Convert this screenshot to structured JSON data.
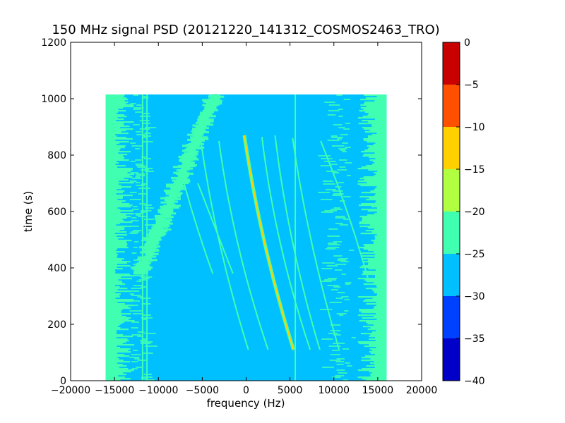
{
  "chart_data": {
    "type": "heatmap",
    "title": "150 MHz signal PSD (20121220_141312_COSMOS2463_TRO)",
    "xlabel": "frequency (Hz)",
    "ylabel": "time (s)",
    "xlim": [
      -20000,
      20000
    ],
    "ylim": [
      0,
      1200
    ],
    "xticks": [
      -20000,
      -15000,
      -10000,
      -5000,
      0,
      5000,
      10000,
      15000,
      20000
    ],
    "yticks": [
      0,
      200,
      400,
      600,
      800,
      1000
    ],
    "data_extent": {
      "freq": [
        -16000,
        16000
      ],
      "time": [
        0,
        1015
      ]
    },
    "background_levels": {
      "center": -27.5,
      "edges": -22.5
    },
    "colorbar": {
      "range": [
        -40,
        0
      ],
      "ticks": [
        0,
        -5,
        -10,
        -15,
        -20,
        -25,
        -30,
        -35,
        -40
      ],
      "bands": [
        {
          "from": -40,
          "to": -35,
          "color": "#0000c8"
        },
        {
          "from": -35,
          "to": -30,
          "color": "#0040ff"
        },
        {
          "from": -30,
          "to": -25,
          "color": "#00c0ff"
        },
        {
          "from": -25,
          "to": -20,
          "color": "#40ffb0"
        },
        {
          "from": -20,
          "to": -15,
          "color": "#b0ff40"
        },
        {
          "from": -15,
          "to": -10,
          "color": "#ffd000"
        },
        {
          "from": -10,
          "to": -5,
          "color": "#ff5000"
        },
        {
          "from": -5,
          "to": 0,
          "color": "#c80000"
        }
      ]
    },
    "tracks": [
      {
        "time_start": 110,
        "time_end": 870,
        "freq_at_start": 5400,
        "freq_at_mid": 2100,
        "freq_at_end": -200,
        "level": -12
      },
      {
        "time_start": 110,
        "time_end": 860,
        "freq_at_start": 250,
        "freq_at_mid": -3000,
        "freq_at_end": -5200,
        "level": -22
      },
      {
        "time_start": 110,
        "time_end": 850,
        "freq_at_start": 2500,
        "freq_at_mid": -900,
        "freq_at_end": -3100,
        "level": -22
      },
      {
        "time_start": 110,
        "time_end": 865,
        "freq_at_start": 7300,
        "freq_at_mid": 3900,
        "freq_at_end": 1800,
        "level": -22
      },
      {
        "time_start": 110,
        "time_end": 870,
        "freq_at_start": 8400,
        "freq_at_mid": 5300,
        "freq_at_end": 3300,
        "level": -22
      },
      {
        "time_start": 110,
        "time_end": 860,
        "freq_at_start": 10600,
        "freq_at_mid": 7500,
        "freq_at_end": 5300,
        "level": -22
      },
      {
        "time_start": 350,
        "time_end": 850,
        "freq_at_start": 14000,
        "freq_at_mid": 11500,
        "freq_at_end": 8500,
        "level": -22
      },
      {
        "time_start": 380,
        "time_end": 700,
        "freq_at_start": -1500,
        "freq_at_mid": -3500,
        "freq_at_end": -5500,
        "level": -24
      },
      {
        "time_start": 380,
        "time_end": 750,
        "freq_at_start": -3800,
        "freq_at_mid": -5800,
        "freq_at_end": -7500,
        "level": -24
      }
    ],
    "diagonal_band": {
      "time_start": 380,
      "time_end": 1015,
      "freq_at_start": -12000,
      "freq_at_end": -3500,
      "level": -23
    },
    "vertical_lines": [
      {
        "freq": -11800,
        "time_start": 0,
        "time_end": 1015,
        "level": -22
      },
      {
        "freq": -11300,
        "time_start": 0,
        "time_end": 1015,
        "level": -22
      },
      {
        "freq": 5600,
        "time_start": 0,
        "time_end": 1015,
        "level": -22
      }
    ]
  }
}
